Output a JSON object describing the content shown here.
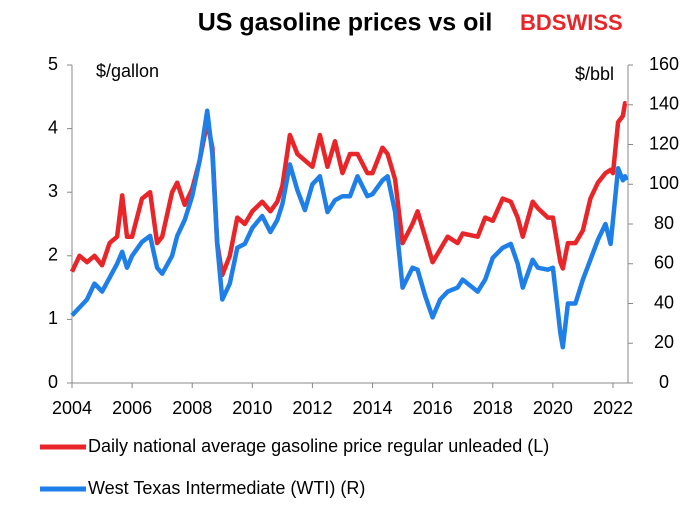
{
  "chart_data": {
    "type": "line",
    "title": "US gasoline prices vs oil",
    "logo": "BDSWISS",
    "y_label": "$/gallon",
    "y2_label": "$/bbl",
    "x": [
      2004.0,
      2004.25,
      2004.5,
      2004.75,
      2005.0,
      2005.25,
      2005.5,
      2005.67,
      2005.83,
      2006.0,
      2006.33,
      2006.6,
      2006.83,
      2007.0,
      2007.33,
      2007.5,
      2007.75,
      2008.0,
      2008.25,
      2008.5,
      2008.67,
      2008.83,
      2009.0,
      2009.25,
      2009.5,
      2009.75,
      2010.0,
      2010.33,
      2010.6,
      2010.83,
      2011.0,
      2011.25,
      2011.5,
      2011.75,
      2012.0,
      2012.25,
      2012.5,
      2012.75,
      2013.0,
      2013.25,
      2013.5,
      2013.83,
      2014.0,
      2014.33,
      2014.5,
      2014.75,
      2015.0,
      2015.33,
      2015.5,
      2015.75,
      2016.0,
      2016.25,
      2016.5,
      2016.83,
      2017.0,
      2017.5,
      2017.75,
      2018.0,
      2018.33,
      2018.6,
      2018.83,
      2019.0,
      2019.33,
      2019.5,
      2019.83,
      2020.0,
      2020.25,
      2020.33,
      2020.5,
      2020.75,
      2021.0,
      2021.25,
      2021.5,
      2021.75,
      2021.92,
      2022.0,
      2022.17,
      2022.33,
      2022.4,
      2022.45
    ],
    "series": [
      {
        "name": "Daily national average gasoline price regular unleaded (L)",
        "color": "#e8262a",
        "axis": "y",
        "values": [
          1.75,
          2.0,
          1.9,
          2.0,
          1.85,
          2.2,
          2.3,
          2.95,
          2.3,
          2.3,
          2.9,
          3.0,
          2.2,
          2.3,
          3.0,
          3.15,
          2.8,
          3.05,
          3.5,
          4.1,
          3.7,
          2.2,
          1.7,
          2.0,
          2.6,
          2.5,
          2.7,
          2.85,
          2.7,
          2.85,
          3.1,
          3.9,
          3.6,
          3.5,
          3.4,
          3.9,
          3.4,
          3.8,
          3.3,
          3.6,
          3.6,
          3.3,
          3.3,
          3.7,
          3.6,
          3.2,
          2.2,
          2.5,
          2.7,
          2.3,
          1.9,
          2.1,
          2.3,
          2.2,
          2.35,
          2.3,
          2.6,
          2.55,
          2.9,
          2.85,
          2.6,
          2.3,
          2.85,
          2.75,
          2.6,
          2.6,
          1.9,
          1.8,
          2.2,
          2.2,
          2.4,
          2.9,
          3.15,
          3.3,
          3.35,
          3.3,
          4.1,
          4.2,
          4.4,
          4.4
        ]
      },
      {
        "name": "West Texas Intermediate (WTI) (R)",
        "color": "#1e7fe8",
        "axis": "y2",
        "values": [
          34,
          38,
          42,
          50,
          46,
          53,
          60,
          66,
          58,
          64,
          71,
          74,
          58,
          55,
          64,
          74,
          82,
          94,
          112,
          137,
          115,
          70,
          42,
          50,
          68,
          70,
          78,
          84,
          76,
          82,
          90,
          110,
          97,
          87,
          100,
          104,
          86,
          92,
          94,
          94,
          104,
          94,
          95,
          102,
          104,
          86,
          48,
          58,
          57,
          44,
          33,
          42,
          46,
          48,
          52,
          46,
          52,
          63,
          68,
          70,
          60,
          48,
          62,
          58,
          57,
          58,
          25,
          18,
          40,
          40,
          52,
          62,
          72,
          80,
          70,
          82,
          108,
          102,
          104,
          102
        ]
      }
    ],
    "xlim": [
      2004,
      2022.5
    ],
    "xticks": [
      2004,
      2006,
      2008,
      2010,
      2012,
      2014,
      2016,
      2018,
      2020,
      2022
    ],
    "ylim": [
      0,
      5
    ],
    "yticks": [
      0,
      1,
      2,
      3,
      4,
      5
    ],
    "y2lim": [
      0,
      160
    ],
    "y2ticks": [
      0,
      20,
      40,
      60,
      80,
      100,
      120,
      140,
      160
    ],
    "legend": "bottom",
    "grid": false
  }
}
